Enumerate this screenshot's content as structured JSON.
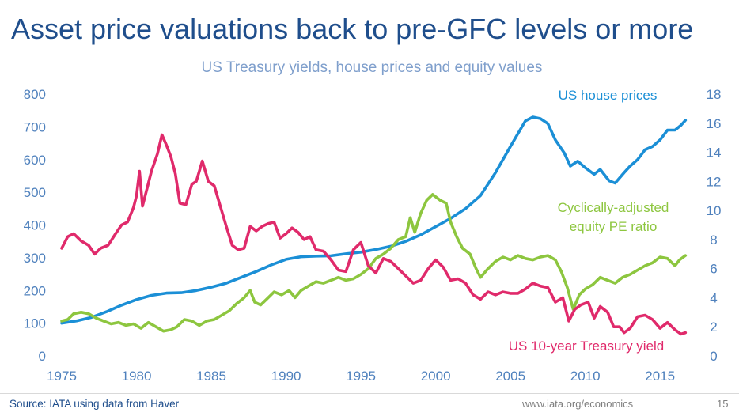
{
  "slide": {
    "title": "Asset price valuations back to pre-GFC levels or more",
    "source": "Source: IATA using data from Haver",
    "url": "www.iata.org/economics",
    "page_number": "15"
  },
  "chart_data": {
    "type": "line",
    "title": "US Treasury yields, house prices and equity values",
    "xlim": [
      1975,
      2017
    ],
    "x_ticks": [
      "1975",
      "1980",
      "1985",
      "1990",
      "1995",
      "2000",
      "2005",
      "2010",
      "2015"
    ],
    "y_left": {
      "lim": [
        0,
        800
      ],
      "ticks": [
        "0",
        "100",
        "200",
        "300",
        "400",
        "500",
        "600",
        "700",
        "800"
      ]
    },
    "y_right": {
      "lim": [
        0,
        18
      ],
      "ticks": [
        "0",
        "2",
        "4",
        "6",
        "8",
        "10",
        "12",
        "14",
        "16",
        "18"
      ]
    },
    "series": [
      {
        "name": "US house prices",
        "axis": "left",
        "color": "#1b8fd6",
        "points": [
          [
            1975.0,
            100
          ],
          [
            1976.0,
            107
          ],
          [
            1977.0,
            118
          ],
          [
            1978.0,
            135
          ],
          [
            1979.0,
            155
          ],
          [
            1980.0,
            172
          ],
          [
            1981.0,
            185
          ],
          [
            1982.0,
            192
          ],
          [
            1983.0,
            193
          ],
          [
            1984.0,
            200
          ],
          [
            1985.0,
            210
          ],
          [
            1986.0,
            222
          ],
          [
            1987.0,
            240
          ],
          [
            1988.0,
            258
          ],
          [
            1989.0,
            278
          ],
          [
            1990.0,
            295
          ],
          [
            1991.0,
            303
          ],
          [
            1992.0,
            305
          ],
          [
            1993.0,
            306
          ],
          [
            1994.0,
            312
          ],
          [
            1995.0,
            317
          ],
          [
            1996.0,
            325
          ],
          [
            1997.0,
            335
          ],
          [
            1998.0,
            350
          ],
          [
            1999.0,
            370
          ],
          [
            2000.0,
            395
          ],
          [
            2001.0,
            420
          ],
          [
            2002.0,
            450
          ],
          [
            2003.0,
            490
          ],
          [
            2004.0,
            560
          ],
          [
            2005.0,
            640
          ],
          [
            2006.0,
            718
          ],
          [
            2006.5,
            730
          ],
          [
            2007.0,
            725
          ],
          [
            2007.5,
            710
          ],
          [
            2008.0,
            660
          ],
          [
            2008.6,
            620
          ],
          [
            2009.0,
            580
          ],
          [
            2009.5,
            595
          ],
          [
            2010.0,
            575
          ],
          [
            2010.6,
            555
          ],
          [
            2011.0,
            570
          ],
          [
            2011.6,
            535
          ],
          [
            2012.0,
            528
          ],
          [
            2012.6,
            560
          ],
          [
            2013.0,
            580
          ],
          [
            2013.5,
            600
          ],
          [
            2014.0,
            630
          ],
          [
            2014.5,
            640
          ],
          [
            2015.0,
            660
          ],
          [
            2015.5,
            690
          ],
          [
            2016.0,
            690
          ],
          [
            2016.4,
            705
          ],
          [
            2016.7,
            720
          ]
        ]
      },
      {
        "name": "Cyclically-adjusted equity PE ratio",
        "axis": "right",
        "color": "#8dc63f",
        "points": [
          [
            1975.0,
            2.4
          ],
          [
            1975.4,
            2.5
          ],
          [
            1975.8,
            2.9
          ],
          [
            1976.3,
            3.0
          ],
          [
            1976.8,
            2.9
          ],
          [
            1977.3,
            2.6
          ],
          [
            1977.8,
            2.4
          ],
          [
            1978.3,
            2.2
          ],
          [
            1978.8,
            2.3
          ],
          [
            1979.3,
            2.1
          ],
          [
            1979.8,
            2.2
          ],
          [
            1980.3,
            1.9
          ],
          [
            1980.8,
            2.3
          ],
          [
            1981.3,
            2.0
          ],
          [
            1981.8,
            1.7
          ],
          [
            1982.3,
            1.8
          ],
          [
            1982.7,
            2.0
          ],
          [
            1983.2,
            2.5
          ],
          [
            1983.7,
            2.4
          ],
          [
            1984.2,
            2.1
          ],
          [
            1984.7,
            2.4
          ],
          [
            1985.2,
            2.5
          ],
          [
            1985.7,
            2.8
          ],
          [
            1986.2,
            3.1
          ],
          [
            1986.7,
            3.6
          ],
          [
            1987.2,
            4.0
          ],
          [
            1987.6,
            4.5
          ],
          [
            1987.9,
            3.7
          ],
          [
            1988.3,
            3.5
          ],
          [
            1988.7,
            3.9
          ],
          [
            1989.2,
            4.4
          ],
          [
            1989.7,
            4.2
          ],
          [
            1990.2,
            4.5
          ],
          [
            1990.6,
            4.0
          ],
          [
            1991.0,
            4.5
          ],
          [
            1991.5,
            4.8
          ],
          [
            1992.0,
            5.1
          ],
          [
            1992.5,
            5.0
          ],
          [
            1993.0,
            5.2
          ],
          [
            1993.5,
            5.4
          ],
          [
            1994.0,
            5.2
          ],
          [
            1994.5,
            5.3
          ],
          [
            1995.0,
            5.6
          ],
          [
            1995.5,
            6.0
          ],
          [
            1996.0,
            6.7
          ],
          [
            1996.5,
            7.0
          ],
          [
            1997.0,
            7.4
          ],
          [
            1997.5,
            8.0
          ],
          [
            1998.0,
            8.2
          ],
          [
            1998.3,
            9.5
          ],
          [
            1998.6,
            8.5
          ],
          [
            1999.0,
            9.8
          ],
          [
            1999.4,
            10.7
          ],
          [
            1999.8,
            11.1
          ],
          [
            2000.3,
            10.7
          ],
          [
            2000.7,
            10.5
          ],
          [
            2001.0,
            9.2
          ],
          [
            2001.4,
            8.2
          ],
          [
            2001.8,
            7.4
          ],
          [
            2002.3,
            7.0
          ],
          [
            2002.7,
            6.0
          ],
          [
            2003.0,
            5.4
          ],
          [
            2003.5,
            6.0
          ],
          [
            2004.0,
            6.5
          ],
          [
            2004.5,
            6.8
          ],
          [
            2005.0,
            6.6
          ],
          [
            2005.5,
            6.9
          ],
          [
            2006.0,
            6.7
          ],
          [
            2006.5,
            6.6
          ],
          [
            2007.0,
            6.8
          ],
          [
            2007.5,
            6.9
          ],
          [
            2008.0,
            6.6
          ],
          [
            2008.4,
            5.8
          ],
          [
            2008.8,
            4.7
          ],
          [
            2009.2,
            3.2
          ],
          [
            2009.6,
            4.2
          ],
          [
            2010.0,
            4.6
          ],
          [
            2010.5,
            4.9
          ],
          [
            2011.0,
            5.4
          ],
          [
            2011.5,
            5.2
          ],
          [
            2012.0,
            5.0
          ],
          [
            2012.5,
            5.4
          ],
          [
            2013.0,
            5.6
          ],
          [
            2013.5,
            5.9
          ],
          [
            2014.0,
            6.2
          ],
          [
            2014.5,
            6.4
          ],
          [
            2015.0,
            6.8
          ],
          [
            2015.5,
            6.7
          ],
          [
            2016.0,
            6.2
          ],
          [
            2016.3,
            6.6
          ],
          [
            2016.7,
            6.9
          ]
        ]
      },
      {
        "name": "US 10-year Treasury yield",
        "axis": "right",
        "color": "#e02a6b",
        "points": [
          [
            1975.0,
            7.4
          ],
          [
            1975.4,
            8.2
          ],
          [
            1975.8,
            8.4
          ],
          [
            1976.3,
            7.9
          ],
          [
            1976.8,
            7.6
          ],
          [
            1977.2,
            7.0
          ],
          [
            1977.6,
            7.4
          ],
          [
            1978.1,
            7.6
          ],
          [
            1978.6,
            8.4
          ],
          [
            1979.0,
            9.0
          ],
          [
            1979.4,
            9.2
          ],
          [
            1979.8,
            10.2
          ],
          [
            1980.0,
            11.0
          ],
          [
            1980.2,
            12.7
          ],
          [
            1980.4,
            10.3
          ],
          [
            1980.7,
            11.5
          ],
          [
            1981.0,
            12.7
          ],
          [
            1981.4,
            13.9
          ],
          [
            1981.7,
            15.2
          ],
          [
            1982.0,
            14.5
          ],
          [
            1982.3,
            13.7
          ],
          [
            1982.6,
            12.5
          ],
          [
            1982.9,
            10.5
          ],
          [
            1983.3,
            10.4
          ],
          [
            1983.7,
            11.8
          ],
          [
            1984.0,
            12.0
          ],
          [
            1984.4,
            13.4
          ],
          [
            1984.8,
            12.0
          ],
          [
            1985.2,
            11.7
          ],
          [
            1985.6,
            10.3
          ],
          [
            1986.0,
            8.9
          ],
          [
            1986.4,
            7.6
          ],
          [
            1986.8,
            7.3
          ],
          [
            1987.2,
            7.4
          ],
          [
            1987.6,
            8.9
          ],
          [
            1988.0,
            8.6
          ],
          [
            1988.4,
            8.9
          ],
          [
            1988.8,
            9.1
          ],
          [
            1989.2,
            9.2
          ],
          [
            1989.6,
            8.1
          ],
          [
            1990.0,
            8.4
          ],
          [
            1990.4,
            8.8
          ],
          [
            1990.8,
            8.5
          ],
          [
            1991.2,
            8.0
          ],
          [
            1991.6,
            8.2
          ],
          [
            1992.0,
            7.3
          ],
          [
            1992.5,
            7.2
          ],
          [
            1993.0,
            6.6
          ],
          [
            1993.5,
            5.9
          ],
          [
            1994.0,
            5.8
          ],
          [
            1994.5,
            7.3
          ],
          [
            1995.0,
            7.8
          ],
          [
            1995.5,
            6.2
          ],
          [
            1996.0,
            5.7
          ],
          [
            1996.5,
            6.7
          ],
          [
            1997.0,
            6.5
          ],
          [
            1997.5,
            6.0
          ],
          [
            1998.0,
            5.5
          ],
          [
            1998.5,
            5.0
          ],
          [
            1999.0,
            5.2
          ],
          [
            1999.5,
            6.0
          ],
          [
            2000.0,
            6.6
          ],
          [
            2000.5,
            6.1
          ],
          [
            2001.0,
            5.2
          ],
          [
            2001.5,
            5.3
          ],
          [
            2002.0,
            5.0
          ],
          [
            2002.5,
            4.2
          ],
          [
            2003.0,
            3.9
          ],
          [
            2003.5,
            4.4
          ],
          [
            2004.0,
            4.2
          ],
          [
            2004.5,
            4.4
          ],
          [
            2005.0,
            4.3
          ],
          [
            2005.5,
            4.3
          ],
          [
            2006.0,
            4.6
          ],
          [
            2006.5,
            5.0
          ],
          [
            2007.0,
            4.8
          ],
          [
            2007.5,
            4.7
          ],
          [
            2008.0,
            3.7
          ],
          [
            2008.5,
            4.0
          ],
          [
            2008.9,
            2.4
          ],
          [
            2009.3,
            3.2
          ],
          [
            2009.7,
            3.5
          ],
          [
            2010.2,
            3.7
          ],
          [
            2010.6,
            2.6
          ],
          [
            2011.0,
            3.4
          ],
          [
            2011.5,
            3.0
          ],
          [
            2011.9,
            2.0
          ],
          [
            2012.3,
            2.0
          ],
          [
            2012.6,
            1.6
          ],
          [
            2013.0,
            1.9
          ],
          [
            2013.5,
            2.7
          ],
          [
            2014.0,
            2.8
          ],
          [
            2014.5,
            2.5
          ],
          [
            2015.0,
            1.9
          ],
          [
            2015.5,
            2.3
          ],
          [
            2016.0,
            1.8
          ],
          [
            2016.4,
            1.5
          ],
          [
            2016.7,
            1.6
          ]
        ]
      }
    ]
  }
}
